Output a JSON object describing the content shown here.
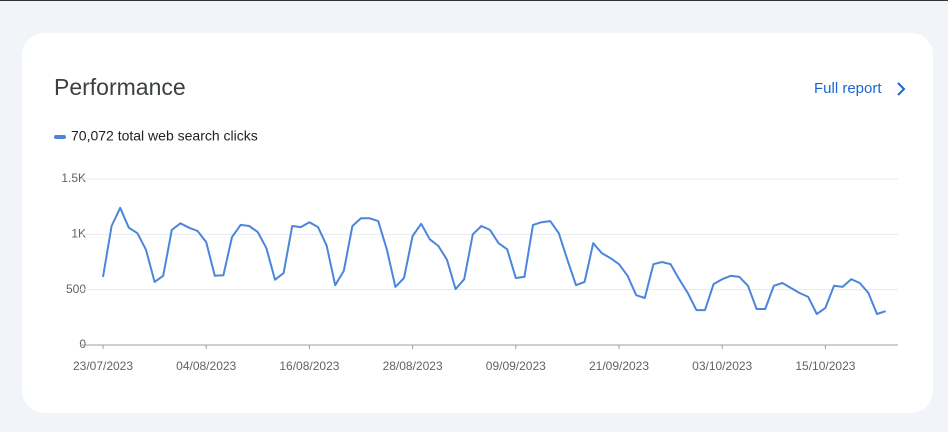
{
  "chart_data": {
    "type": "line",
    "title": "Performance",
    "link": "Full report",
    "categories": [
      "23/07/2023",
      null,
      null,
      null,
      null,
      null,
      null,
      null,
      null,
      null,
      null,
      null,
      "04/08/2023",
      null,
      null,
      null,
      null,
      null,
      null,
      null,
      null,
      null,
      null,
      null,
      "16/08/2023",
      null,
      null,
      null,
      null,
      null,
      null,
      null,
      null,
      null,
      null,
      null,
      "28/08/2023",
      null,
      null,
      null,
      null,
      null,
      null,
      null,
      null,
      null,
      null,
      null,
      "09/09/2023",
      null,
      null,
      null,
      null,
      null,
      null,
      null,
      null,
      null,
      null,
      null,
      "21/09/2023",
      null,
      null,
      null,
      null,
      null,
      null,
      null,
      null,
      null,
      null,
      null,
      "03/10/2023",
      null,
      null,
      null,
      null,
      null,
      null,
      null,
      null,
      null,
      null,
      null,
      "15/10/2023",
      null,
      null,
      null,
      null,
      null,
      null,
      null
    ],
    "series": [
      {
        "name": "70,072 total web search clicks",
        "color": "#4a86dc",
        "values": [
          615,
          1075,
          1240,
          1060,
          1010,
          860,
          570,
          625,
          1040,
          1100,
          1060,
          1030,
          930,
          625,
          630,
          975,
          1085,
          1075,
          1020,
          875,
          590,
          650,
          1075,
          1065,
          1110,
          1065,
          900,
          540,
          670,
          1075,
          1145,
          1145,
          1120,
          865,
          525,
          605,
          985,
          1095,
          955,
          895,
          770,
          505,
          595,
          1000,
          1075,
          1040,
          920,
          865,
          605,
          615,
          1085,
          1110,
          1120,
          1010,
          770,
          540,
          570,
          920,
          830,
          785,
          730,
          625,
          450,
          425,
          730,
          750,
          730,
          595,
          470,
          315,
          315,
          550,
          595,
          625,
          615,
          535,
          325,
          325,
          535,
          560,
          515,
          470,
          435,
          280,
          335,
          535,
          525,
          595,
          560,
          470,
          280,
          305
        ]
      }
    ],
    "ylim": [
      0,
      1500
    ],
    "yticks": [
      0,
      500,
      {
        "value": 1000,
        "label": "1K"
      },
      {
        "value": 1500,
        "label": "1.5K"
      }
    ],
    "grid": true
  }
}
